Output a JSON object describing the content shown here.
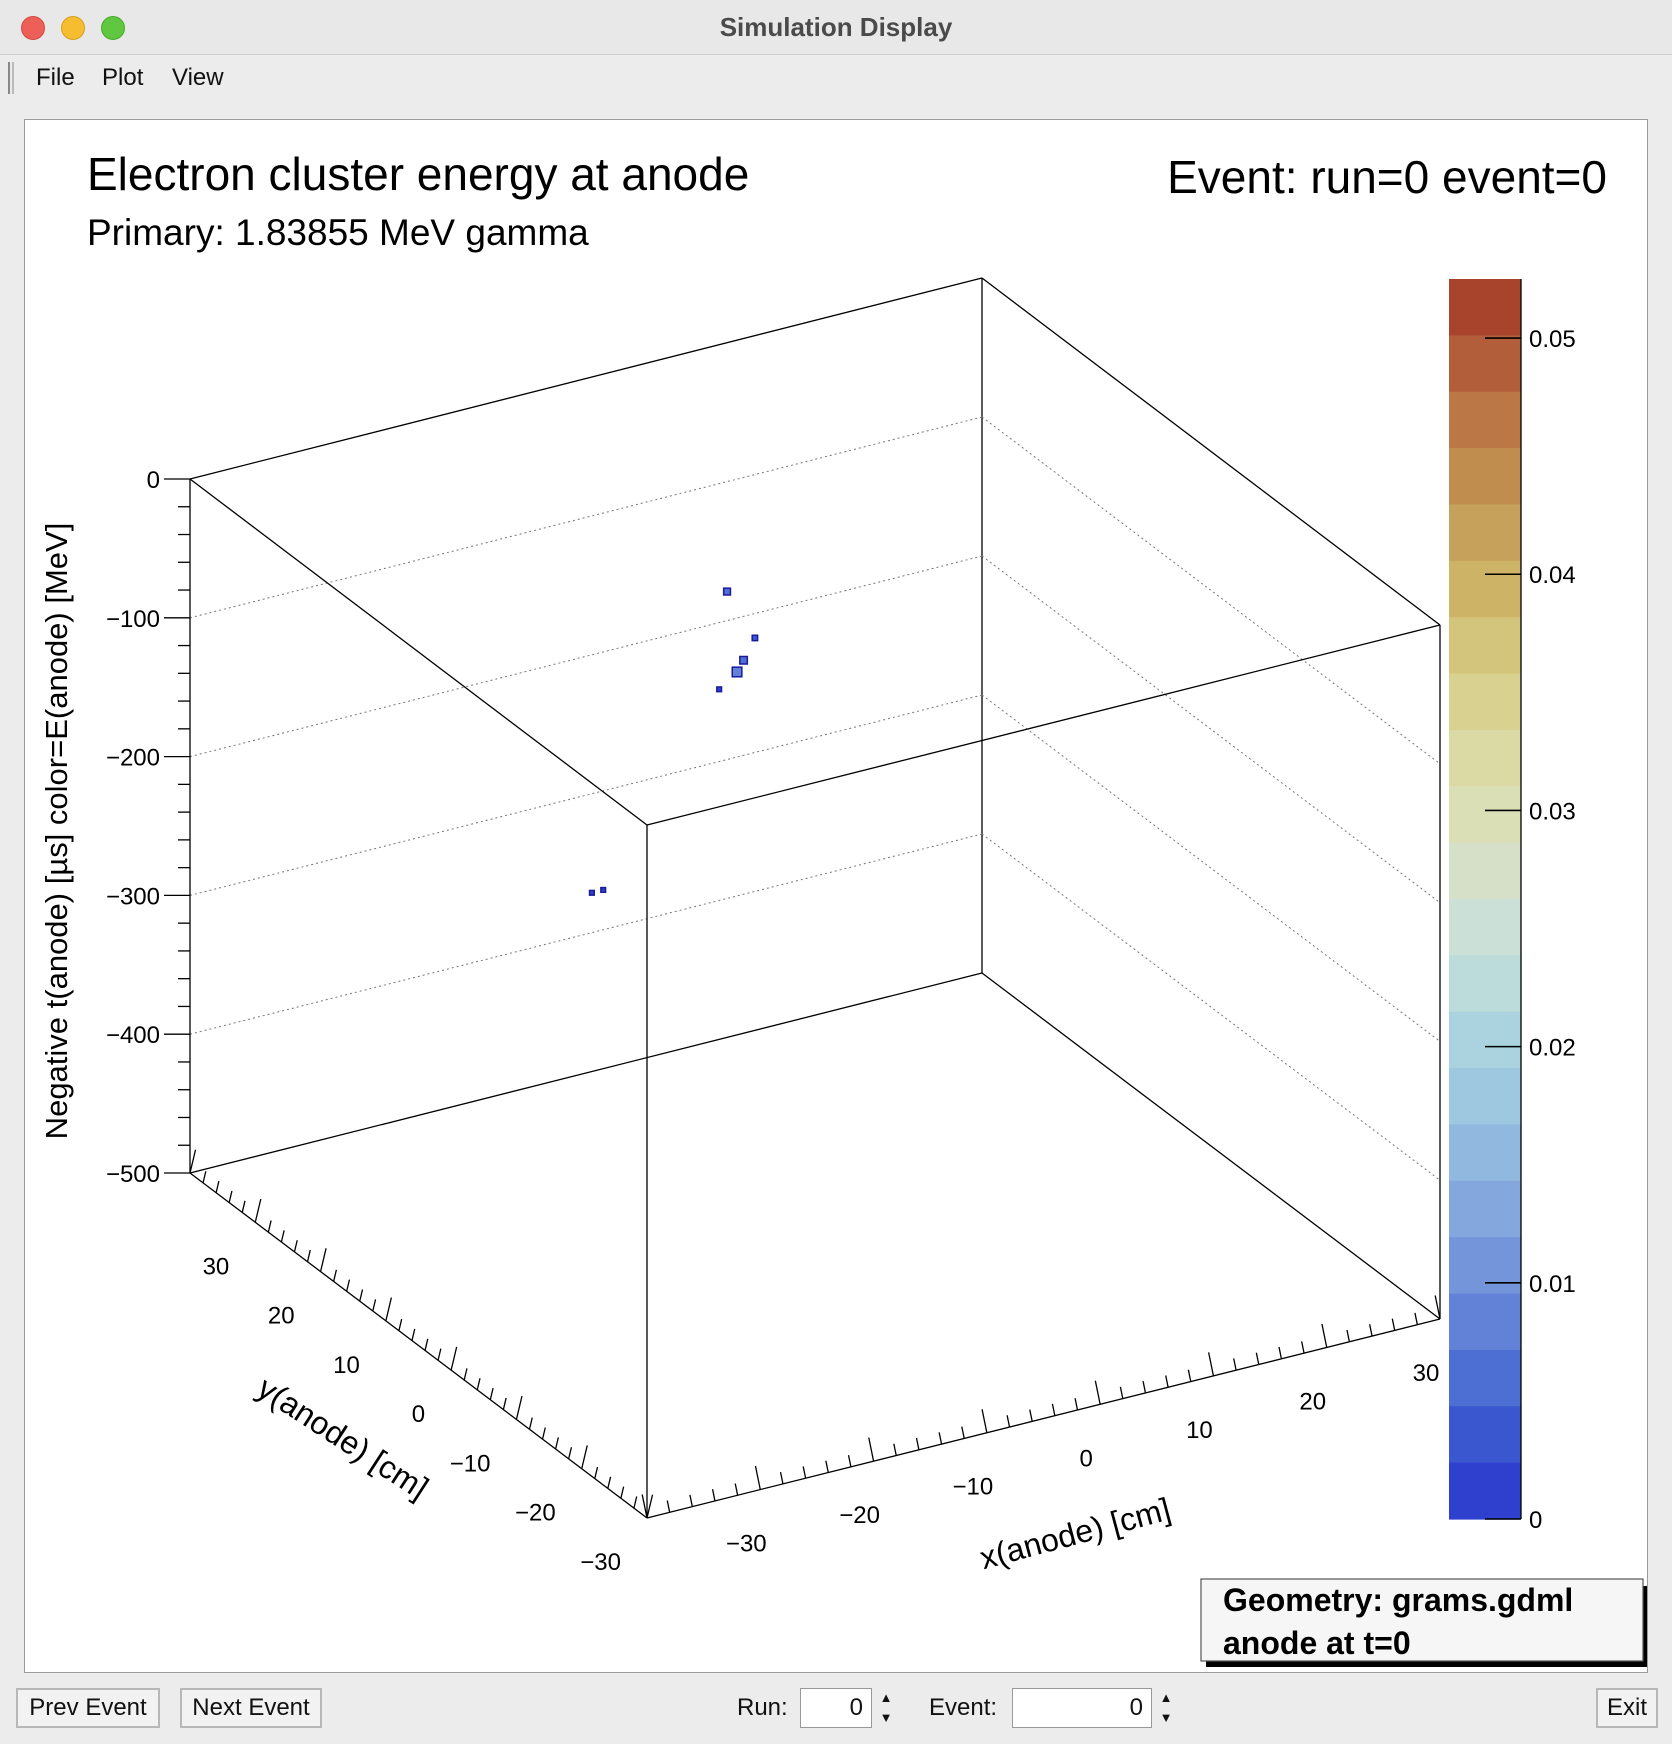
{
  "window": {
    "title": "Simulation Display"
  },
  "menu": {
    "items": [
      "File",
      "Plot",
      "View"
    ]
  },
  "plot": {
    "title": "Electron cluster energy at anode",
    "subtitle": "Primary: 1.83855 MeV gamma",
    "event_label": "Event: run=0 event=0",
    "info_box": {
      "line1": "Geometry: grams.gdml",
      "line2": "anode at t=0"
    }
  },
  "chart_data": {
    "type": "scatter",
    "dimensions": 3,
    "xlabel": "x(anode) [cm]",
    "ylabel": "y(anode) [cm]",
    "zlabel": "Negative t(anode) [µs]      color=E(anode) [MeV]",
    "xlim": [
      -35,
      35
    ],
    "ylim": [
      -35,
      35
    ],
    "zlim": [
      -500,
      0
    ],
    "x_ticks": [
      "−30",
      "−20",
      "−10",
      "0",
      "10",
      "20",
      "30"
    ],
    "y_ticks": [
      "30",
      "20",
      "10",
      "0",
      "−10",
      "−20",
      "−30"
    ],
    "z_ticks": [
      "0",
      "−100",
      "−200",
      "−300",
      "−400",
      "−500"
    ],
    "colorbar": {
      "range": [
        0,
        0.05
      ],
      "ticks": [
        "0.05",
        "0.04",
        "0.03",
        "0.02",
        "0.01",
        "0"
      ],
      "palette": [
        "#a8432c",
        "#b35e3a",
        "#bb7846",
        "#c08d4f",
        "#c5a15b",
        "#ccb366",
        "#d3c57c",
        "#d8d190",
        "#dcdaa4",
        "#dbdfb6",
        "#d6e0c8",
        "#cbe0d6",
        "#bcdcdc",
        "#abd2df",
        "#9ec7e0",
        "#91b8df",
        "#84a7dd",
        "#7595db",
        "#6282d7",
        "#4d6ed3",
        "#3b57cf",
        "#2f3fce"
      ]
    },
    "points": [
      {
        "x": -4,
        "y": 4,
        "z": -84,
        "e": 0.005
      },
      {
        "x": -2,
        "y": 10,
        "z": -60,
        "e": 0.004
      },
      {
        "x": -3,
        "y": 4,
        "z": -70,
        "e": 0.002
      },
      {
        "x": -4,
        "y": 5,
        "z": -96,
        "e": 0.008
      },
      {
        "x": -5,
        "y": 6,
        "z": -110,
        "e": 0.001
      },
      {
        "x": -22,
        "y": -4,
        "z": -186,
        "e": 0.001
      },
      {
        "x": -21,
        "y": -4,
        "z": -186,
        "e": 0.001
      }
    ]
  },
  "controls": {
    "prev_label": "Prev Event",
    "next_label": "Next Event",
    "run_label": "Run:",
    "run_value": "0",
    "event_label": "Event:",
    "event_value": "0",
    "exit_label": "Exit"
  }
}
